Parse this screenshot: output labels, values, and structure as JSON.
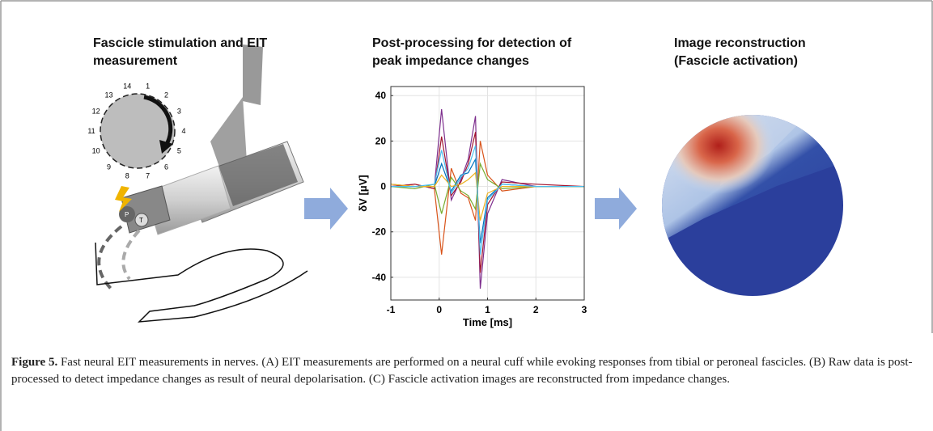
{
  "figure": {
    "panels": [
      {
        "title": "Fascicle stimulation and EIT measurement",
        "electrodes": [
          "1",
          "2",
          "3",
          "4",
          "5",
          "6",
          "7",
          "8",
          "9",
          "10",
          "11",
          "12",
          "13",
          "14"
        ],
        "cuff_labels": [
          "P",
          "T"
        ]
      },
      {
        "title": "Post-processing for detection of peak impedance changes",
        "chart_data": {
          "type": "line",
          "xlabel": "Time [ms]",
          "ylabel": "δV [μV]",
          "x": [
            -1,
            -0.5,
            -0.1,
            0.05,
            0.25,
            0.45,
            0.6,
            0.75,
            0.85,
            1.0,
            1.3,
            2,
            3
          ],
          "series": [
            {
              "color": "#7e2f8e",
              "values": [
                1,
                0,
                0,
                34,
                -6,
                3,
                12,
                31,
                -45,
                -12,
                3,
                0,
                0
              ]
            },
            {
              "color": "#d95319",
              "values": [
                0,
                1,
                -1,
                -30,
                8,
                -3,
                -5,
                -15,
                20,
                5,
                -2,
                0,
                0
              ]
            },
            {
              "color": "#a2142f",
              "values": [
                0,
                1,
                -1,
                22,
                -4,
                2,
                10,
                24,
                -38,
                -8,
                2,
                1,
                0
              ]
            },
            {
              "color": "#0072bd",
              "values": [
                0,
                0,
                0,
                10,
                -2,
                5,
                6,
                12,
                -25,
                -5,
                1,
                0,
                0
              ]
            },
            {
              "color": "#77ac30",
              "values": [
                0,
                -1,
                1,
                -12,
                4,
                -2,
                -4,
                -10,
                10,
                3,
                -1,
                0,
                0
              ]
            },
            {
              "color": "#edb120",
              "values": [
                1,
                0,
                0,
                5,
                0,
                1,
                3,
                6,
                -15,
                -3,
                0,
                0,
                0
              ]
            },
            {
              "color": "#4dbeee",
              "values": [
                0,
                0,
                1,
                16,
                -3,
                4,
                8,
                18,
                -30,
                -6,
                1,
                0,
                0
              ]
            }
          ],
          "xlim": [
            -1,
            3
          ],
          "xticks": [
            -1,
            0,
            1,
            2,
            3
          ],
          "ylim": [
            -50,
            44
          ],
          "yticks": [
            -40,
            -20,
            0,
            20,
            40
          ],
          "grid": true
        }
      },
      {
        "title": "Image reconstruction (Fascicle activation)"
      }
    ],
    "caption": {
      "label": "Figure 5.",
      "text": "Fast neural EIT measurements in nerves. (A) EIT measurements are performed on a neural cuff while evoking responses from tibial or peroneal fascicles. (B) Raw data is post-processed to detect impedance changes as result of neural depolarisation. (C) Fascicle activation images are reconstructed from impedance changes."
    }
  }
}
